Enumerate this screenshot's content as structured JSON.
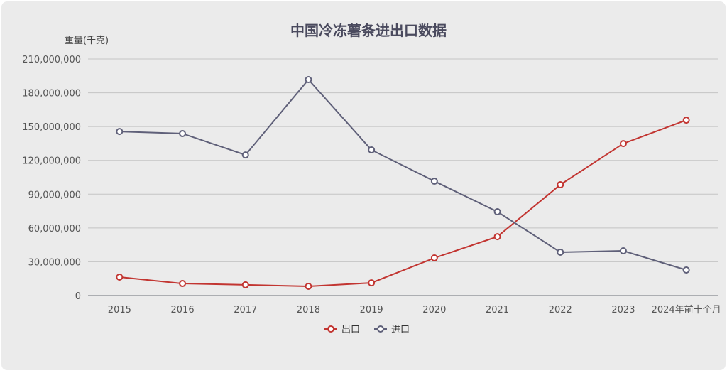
{
  "chart_data": {
    "type": "line",
    "title": "中国冷冻薯条进出口数据",
    "ylabel": "重量(千克)",
    "xlabel": "",
    "categories": [
      "2015",
      "2016",
      "2017",
      "2018",
      "2019",
      "2020",
      "2021",
      "2022",
      "2023",
      "2024年前十个月"
    ],
    "ylim": [
      0,
      210000000
    ],
    "yticks": [
      0,
      30000000,
      60000000,
      90000000,
      120000000,
      150000000,
      180000000,
      210000000
    ],
    "ytick_labels": [
      "0",
      "30,000,000",
      "60,000,000",
      "90,000,000",
      "120,000,000",
      "150,000,000",
      "180,000,000",
      "210,000,000"
    ],
    "grid": true,
    "legend_position": "bottom-center",
    "series": [
      {
        "name": "出口",
        "color": "#c23531",
        "values": [
          16400000,
          10700000,
          9500000,
          8200000,
          11300000,
          33400000,
          52300000,
          98400000,
          134900000,
          155700000
        ]
      },
      {
        "name": "进口",
        "color": "#5f6079",
        "values": [
          145600000,
          143800000,
          124800000,
          191700000,
          129300000,
          101500000,
          74400000,
          38500000,
          39700000,
          22700000
        ]
      }
    ]
  }
}
